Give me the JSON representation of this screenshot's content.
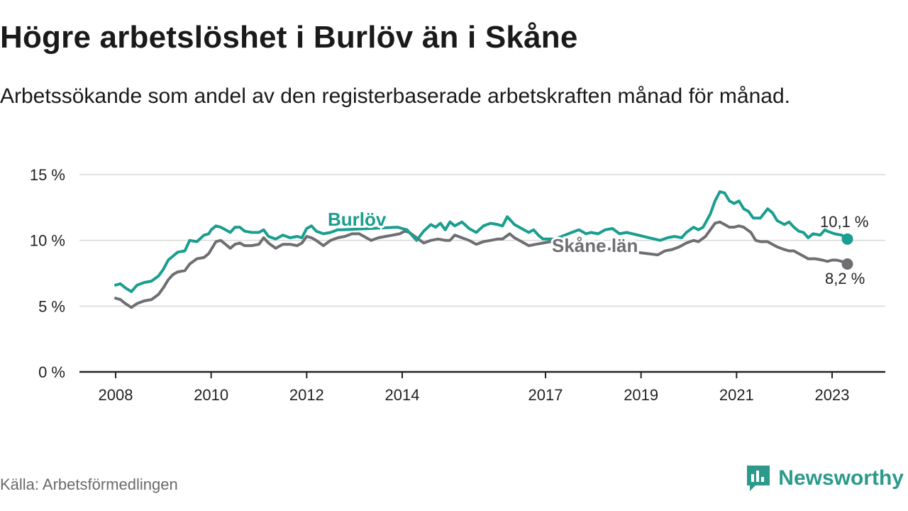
{
  "chart_data": {
    "type": "line",
    "title": "Högre arbetslöshet i Burlöv än i Skåne",
    "subtitle": "Arbetssökande som andel av den registerbaserade arbetskraften månad för månad.",
    "xlabel": "",
    "ylabel": "",
    "ylim": [
      0,
      15
    ],
    "y_ticks": [
      {
        "value": 0,
        "label": "0 %"
      },
      {
        "value": 5,
        "label": "5 %"
      },
      {
        "value": 10,
        "label": "10 %"
      },
      {
        "value": 15,
        "label": "15 %"
      }
    ],
    "x_ticks": [
      {
        "value": 2008,
        "label": "2008"
      },
      {
        "value": 2010,
        "label": "2010"
      },
      {
        "value": 2012,
        "label": "2012"
      },
      {
        "value": 2014,
        "label": "2014"
      },
      {
        "value": 2017,
        "label": "2017"
      },
      {
        "value": 2019,
        "label": "2019"
      },
      {
        "value": 2021,
        "label": "2021"
      },
      {
        "value": 2023,
        "label": "2023"
      }
    ],
    "xlim": [
      2007.75,
      2024.1
    ],
    "grid": true,
    "series": [
      {
        "name": "Burlöv",
        "color": "#1a9e8f",
        "end_label": "10,1 %",
        "points": [
          [
            2008.0,
            6.6
          ],
          [
            2008.1,
            6.7
          ],
          [
            2008.2,
            6.4
          ],
          [
            2008.33,
            6.1
          ],
          [
            2008.45,
            6.6
          ],
          [
            2008.6,
            6.8
          ],
          [
            2008.75,
            6.9
          ],
          [
            2008.9,
            7.3
          ],
          [
            2009.0,
            7.8
          ],
          [
            2009.1,
            8.5
          ],
          [
            2009.2,
            8.8
          ],
          [
            2009.3,
            9.1
          ],
          [
            2009.45,
            9.2
          ],
          [
            2009.55,
            10.0
          ],
          [
            2009.7,
            9.9
          ],
          [
            2009.85,
            10.4
          ],
          [
            2009.95,
            10.5
          ],
          [
            2010.0,
            10.8
          ],
          [
            2010.1,
            11.1
          ],
          [
            2010.2,
            11.0
          ],
          [
            2010.3,
            10.8
          ],
          [
            2010.4,
            10.6
          ],
          [
            2010.5,
            11.0
          ],
          [
            2010.6,
            11.0
          ],
          [
            2010.7,
            10.7
          ],
          [
            2010.85,
            10.6
          ],
          [
            2011.0,
            10.6
          ],
          [
            2011.1,
            10.8
          ],
          [
            2011.2,
            10.3
          ],
          [
            2011.35,
            10.1
          ],
          [
            2011.5,
            10.4
          ],
          [
            2011.65,
            10.2
          ],
          [
            2011.8,
            10.3
          ],
          [
            2011.9,
            10.2
          ],
          [
            2012.0,
            10.9
          ],
          [
            2012.1,
            11.1
          ],
          [
            2012.2,
            10.7
          ],
          [
            2012.35,
            10.5
          ],
          [
            2012.5,
            10.6
          ],
          [
            2012.65,
            10.8
          ],
          [
            2012.75,
            10.8
          ],
          [
            2013.9,
            11.0
          ],
          [
            2014.0,
            10.9
          ],
          [
            2014.1,
            10.8
          ],
          [
            2014.2,
            10.4
          ],
          [
            2014.3,
            10.0
          ],
          [
            2014.45,
            10.7
          ],
          [
            2014.6,
            11.2
          ],
          [
            2014.7,
            11.0
          ],
          [
            2014.8,
            11.3
          ],
          [
            2014.9,
            10.8
          ],
          [
            2015.0,
            11.4
          ],
          [
            2015.1,
            11.1
          ],
          [
            2015.25,
            11.4
          ],
          [
            2015.4,
            10.9
          ],
          [
            2015.55,
            10.6
          ],
          [
            2015.7,
            11.1
          ],
          [
            2015.85,
            11.3
          ],
          [
            2016.0,
            11.2
          ],
          [
            2016.1,
            11.1
          ],
          [
            2016.2,
            11.8
          ],
          [
            2016.35,
            11.2
          ],
          [
            2016.5,
            10.9
          ],
          [
            2016.65,
            10.6
          ],
          [
            2016.75,
            10.8
          ],
          [
            2016.85,
            10.4
          ],
          [
            2016.95,
            10.1
          ],
          [
            2017.1,
            10.1
          ],
          [
            2017.2,
            10.1
          ],
          [
            2017.55,
            10.6
          ],
          [
            2017.7,
            10.8
          ],
          [
            2017.85,
            10.5
          ],
          [
            2017.95,
            10.6
          ],
          [
            2018.1,
            10.5
          ],
          [
            2018.25,
            10.8
          ],
          [
            2018.4,
            10.9
          ],
          [
            2018.55,
            10.5
          ],
          [
            2018.7,
            10.6
          ],
          [
            2019.4,
            10.0
          ],
          [
            2019.55,
            10.2
          ],
          [
            2019.7,
            10.3
          ],
          [
            2019.85,
            10.2
          ],
          [
            2019.95,
            10.6
          ],
          [
            2020.1,
            11.0
          ],
          [
            2020.2,
            10.8
          ],
          [
            2020.3,
            11.0
          ],
          [
            2020.45,
            12.0
          ],
          [
            2020.55,
            13.0
          ],
          [
            2020.65,
            13.7
          ],
          [
            2020.75,
            13.6
          ],
          [
            2020.85,
            13.0
          ],
          [
            2020.95,
            12.8
          ],
          [
            2021.05,
            13.0
          ],
          [
            2021.15,
            12.4
          ],
          [
            2021.25,
            12.2
          ],
          [
            2021.35,
            11.7
          ],
          [
            2021.5,
            11.7
          ],
          [
            2021.65,
            12.4
          ],
          [
            2021.75,
            12.1
          ],
          [
            2021.85,
            11.5
          ],
          [
            2022.0,
            11.2
          ],
          [
            2022.1,
            11.4
          ],
          [
            2022.2,
            11.0
          ],
          [
            2022.3,
            10.7
          ],
          [
            2022.4,
            10.6
          ],
          [
            2022.5,
            10.2
          ],
          [
            2022.6,
            10.5
          ],
          [
            2022.75,
            10.4
          ],
          [
            2022.85,
            10.8
          ],
          [
            2022.9,
            10.7
          ],
          [
            2023.05,
            10.5
          ],
          [
            2023.2,
            10.4
          ],
          [
            2023.32,
            10.1
          ]
        ]
      },
      {
        "name": "Skåne län",
        "color": "#6f6e73",
        "end_label": "8,2 %",
        "points": [
          [
            2008.0,
            5.6
          ],
          [
            2008.1,
            5.5
          ],
          [
            2008.2,
            5.2
          ],
          [
            2008.33,
            4.9
          ],
          [
            2008.45,
            5.2
          ],
          [
            2008.6,
            5.4
          ],
          [
            2008.75,
            5.5
          ],
          [
            2008.9,
            5.9
          ],
          [
            2009.0,
            6.4
          ],
          [
            2009.1,
            7.0
          ],
          [
            2009.2,
            7.4
          ],
          [
            2009.3,
            7.6
          ],
          [
            2009.45,
            7.7
          ],
          [
            2009.55,
            8.2
          ],
          [
            2009.7,
            8.6
          ],
          [
            2009.85,
            8.7
          ],
          [
            2009.95,
            9.0
          ],
          [
            2010.0,
            9.3
          ],
          [
            2010.1,
            9.9
          ],
          [
            2010.2,
            10.0
          ],
          [
            2010.3,
            9.7
          ],
          [
            2010.4,
            9.4
          ],
          [
            2010.5,
            9.7
          ],
          [
            2010.6,
            9.8
          ],
          [
            2010.7,
            9.6
          ],
          [
            2010.85,
            9.6
          ],
          [
            2011.0,
            9.7
          ],
          [
            2011.1,
            10.2
          ],
          [
            2011.2,
            9.8
          ],
          [
            2011.35,
            9.4
          ],
          [
            2011.5,
            9.7
          ],
          [
            2011.65,
            9.7
          ],
          [
            2011.8,
            9.6
          ],
          [
            2011.9,
            9.8
          ],
          [
            2012.0,
            10.3
          ],
          [
            2012.1,
            10.2
          ],
          [
            2012.2,
            10.0
          ],
          [
            2012.35,
            9.6
          ],
          [
            2012.5,
            10.0
          ],
          [
            2012.65,
            10.2
          ],
          [
            2012.8,
            10.3
          ],
          [
            2012.95,
            10.5
          ],
          [
            2013.1,
            10.5
          ],
          [
            2013.2,
            10.3
          ],
          [
            2013.35,
            10.0
          ],
          [
            2013.5,
            10.2
          ],
          [
            2013.65,
            10.3
          ],
          [
            2013.8,
            10.4
          ],
          [
            2013.95,
            10.5
          ],
          [
            2014.05,
            10.7
          ],
          [
            2014.15,
            10.6
          ],
          [
            2014.3,
            10.2
          ],
          [
            2014.45,
            9.8
          ],
          [
            2014.6,
            10.0
          ],
          [
            2014.75,
            10.1
          ],
          [
            2014.9,
            10.0
          ],
          [
            2015.0,
            10.0
          ],
          [
            2015.1,
            10.4
          ],
          [
            2015.25,
            10.2
          ],
          [
            2015.4,
            10.0
          ],
          [
            2015.55,
            9.7
          ],
          [
            2015.7,
            9.9
          ],
          [
            2015.85,
            10.0
          ],
          [
            2016.0,
            10.1
          ],
          [
            2016.1,
            10.1
          ],
          [
            2016.25,
            10.5
          ],
          [
            2016.35,
            10.2
          ],
          [
            2016.5,
            9.9
          ],
          [
            2016.65,
            9.6
          ],
          [
            2016.8,
            9.7
          ],
          [
            2016.95,
            9.8
          ],
          [
            2017.1,
            9.9
          ],
          [
            2019.35,
            8.9
          ],
          [
            2019.5,
            9.2
          ],
          [
            2019.65,
            9.3
          ],
          [
            2019.8,
            9.5
          ],
          [
            2019.95,
            9.8
          ],
          [
            2020.1,
            10.0
          ],
          [
            2020.2,
            9.9
          ],
          [
            2020.35,
            10.3
          ],
          [
            2020.45,
            10.8
          ],
          [
            2020.55,
            11.3
          ],
          [
            2020.65,
            11.4
          ],
          [
            2020.75,
            11.2
          ],
          [
            2020.85,
            11.0
          ],
          [
            2020.95,
            11.0
          ],
          [
            2021.05,
            11.1
          ],
          [
            2021.15,
            11.0
          ],
          [
            2021.3,
            10.6
          ],
          [
            2021.4,
            10.0
          ],
          [
            2021.5,
            9.9
          ],
          [
            2021.65,
            9.9
          ],
          [
            2021.75,
            9.7
          ],
          [
            2021.85,
            9.5
          ],
          [
            2022.0,
            9.3
          ],
          [
            2022.1,
            9.2
          ],
          [
            2022.2,
            9.2
          ],
          [
            2022.3,
            9.0
          ],
          [
            2022.4,
            8.8
          ],
          [
            2022.5,
            8.6
          ],
          [
            2022.65,
            8.6
          ],
          [
            2022.8,
            8.5
          ],
          [
            2022.9,
            8.4
          ],
          [
            2023.0,
            8.5
          ],
          [
            2023.1,
            8.5
          ],
          [
            2023.2,
            8.4
          ],
          [
            2023.32,
            8.2
          ]
        ]
      }
    ]
  },
  "source": "Källa: Arbetsförmedlingen",
  "brand": {
    "name": "Newsworthy",
    "color": "#2b9a8a"
  }
}
